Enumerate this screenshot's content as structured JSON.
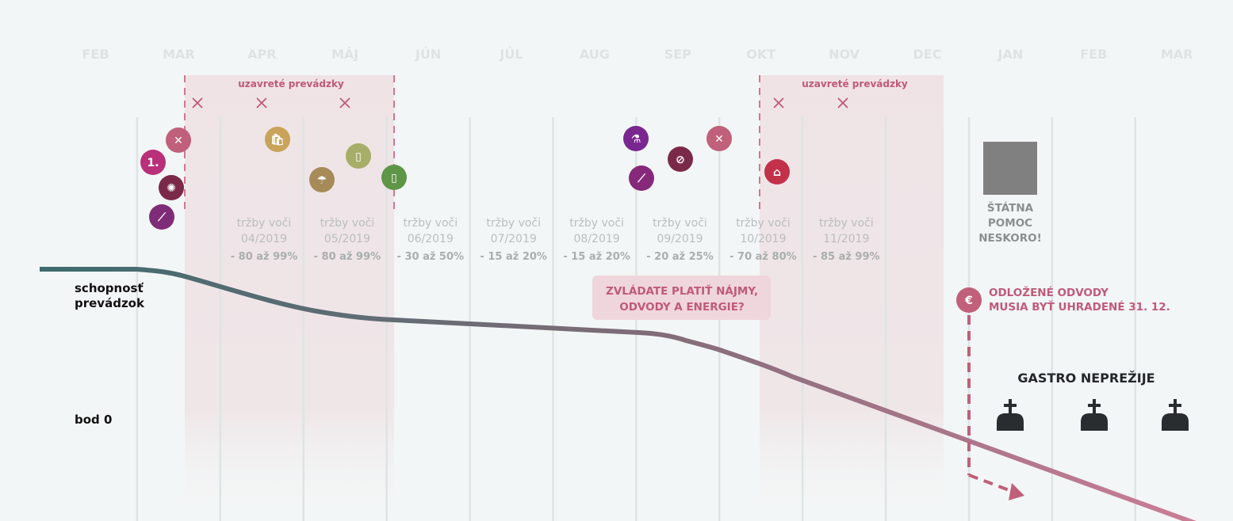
{
  "months": [
    "FEB",
    "MAR",
    "APR",
    "MÁJ",
    "JÚN",
    "JÚL",
    "AUG",
    "SEP",
    "OKT",
    "NOV",
    "DEC",
    "JAN",
    "FEB",
    "MAR"
  ],
  "closures": [
    {
      "label": "uzavreté prevádzky"
    },
    {
      "label": "uzavreté prevádzky"
    }
  ],
  "revenue": [
    {
      "line1": "tržby voči",
      "period": "04/2019",
      "drop": "- 80 až 99%"
    },
    {
      "line1": "tržby voči",
      "period": "05/2019",
      "drop": "- 80 až 99%"
    },
    {
      "line1": "tržby voči",
      "period": "06/2019",
      "drop": "- 30 až 50%"
    },
    {
      "line1": "tržby voči",
      "period": "07/2019",
      "drop": "- 15 až 20%"
    },
    {
      "line1": "tržby voči",
      "period": "08/2019",
      "drop": "- 15 až 20%"
    },
    {
      "line1": "tržby voči",
      "period": "09/2019",
      "drop": "- 20 až 25%"
    },
    {
      "line1": "tržby voči",
      "period": "10/2019",
      "drop": "- 70 až 80%"
    },
    {
      "line1": "tržby voči",
      "period": "11/2019",
      "drop": "- 85 až 99%"
    }
  ],
  "icons": [
    {
      "name": "close-icon",
      "color": "#c0607a",
      "glyph": "✕"
    },
    {
      "name": "first-case-icon",
      "color": "#b8307a",
      "glyph": "1."
    },
    {
      "name": "virus-icon",
      "color": "#7a2a48",
      "glyph": "✺"
    },
    {
      "name": "handshake-icon",
      "color": "#7f2c78",
      "glyph": "⟋"
    },
    {
      "name": "shopping-bag-icon",
      "color": "#c9a35a",
      "glyph": "🛍"
    },
    {
      "name": "umbrella-icon",
      "color": "#a68a58",
      "glyph": "☂"
    },
    {
      "name": "door-open-icon",
      "color": "#a7ae68",
      "glyph": "▯"
    },
    {
      "name": "door-open-icon",
      "color": "#5e9547",
      "glyph": "▯"
    },
    {
      "name": "test-tube-icon",
      "color": "#7a2690",
      "glyph": "⚗"
    },
    {
      "name": "handshake-icon",
      "color": "#86297a",
      "glyph": "⟋"
    },
    {
      "name": "forbidden-icon",
      "color": "#7a2a48",
      "glyph": "⊘"
    },
    {
      "name": "close-icon",
      "color": "#c0607a",
      "glyph": "✕"
    },
    {
      "name": "home-icon",
      "color": "#c2304a",
      "glyph": "⌂"
    },
    {
      "name": "euro-icon",
      "color": "#c0607a",
      "glyph": "€"
    }
  ],
  "labels": {
    "capacity_1": "schopnosť",
    "capacity_2": "prevádzok",
    "zero": "bod 0",
    "question_1": "ZVLÁDATE PLATIŤ NÁJMY,",
    "question_2": "ODVODY A ENERGIE?",
    "state_aid_1": "ŠTÁTNA",
    "state_aid_2": "POMOC",
    "state_aid_3": "NESKORO!",
    "deferred_1": "ODLOŽENÉ ODVODY",
    "deferred_2": "MUSIA BYŤ UHRADENÉ 31. 12.",
    "gastro": "GASTRO NEPREŽIJE"
  },
  "colors": {
    "curve_start": "#3d6b6e",
    "curve_end": "#c9708a",
    "accent": "#c05a7a",
    "baseline": "#2a2d30"
  }
}
